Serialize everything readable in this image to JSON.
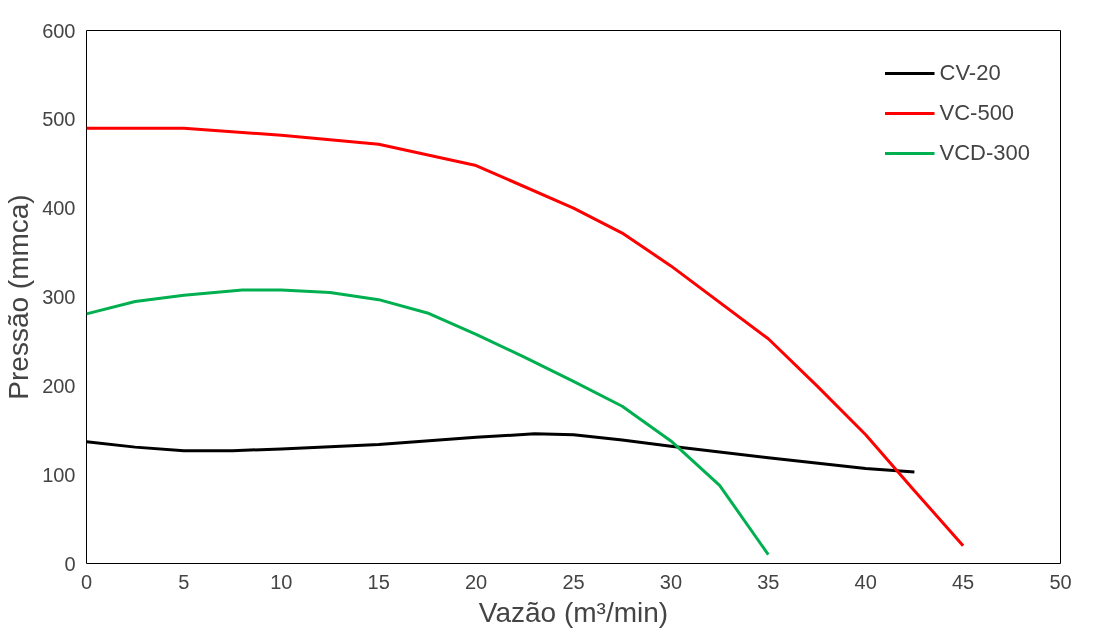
{
  "chart_data": {
    "type": "line",
    "xlabel": "Vazão (m³/min)",
    "ylabel": "Pressão (mmca)",
    "xlim": [
      0,
      50
    ],
    "ylim": [
      0,
      600
    ],
    "xticks": [
      0,
      5,
      10,
      15,
      20,
      25,
      30,
      35,
      40,
      45,
      50
    ],
    "yticks": [
      0,
      100,
      200,
      300,
      400,
      500,
      600
    ],
    "grid": false,
    "legend": "top right",
    "marker": "none",
    "line_style": "solid",
    "series": [
      {
        "name": "CV-20",
        "color": "#000000",
        "x": [
          0,
          2.5,
          5,
          7.5,
          10,
          15,
          20,
          23,
          25,
          27.5,
          30,
          35,
          40,
          42.5
        ],
        "values": [
          137,
          131,
          127,
          127,
          129,
          134,
          142,
          146,
          145,
          139,
          132,
          119,
          107,
          103
        ]
      },
      {
        "name": "VC-500",
        "color": "#ff0000",
        "x": [
          0,
          5,
          10,
          15,
          20,
          25,
          27.5,
          30,
          35,
          37.5,
          40,
          42.5,
          45
        ],
        "values": [
          490,
          490,
          482,
          472,
          448,
          400,
          372,
          335,
          253,
          200,
          145,
          82,
          20
        ]
      },
      {
        "name": "VCD-300",
        "color": "#00b050",
        "x": [
          0,
          2.5,
          5,
          8,
          10,
          12.5,
          15,
          17.5,
          20,
          22.5,
          25,
          27.5,
          30,
          32.5,
          35
        ],
        "values": [
          281,
          295,
          302,
          308,
          308,
          305,
          297,
          282,
          258,
          232,
          205,
          177,
          138,
          88,
          10
        ]
      }
    ]
  }
}
